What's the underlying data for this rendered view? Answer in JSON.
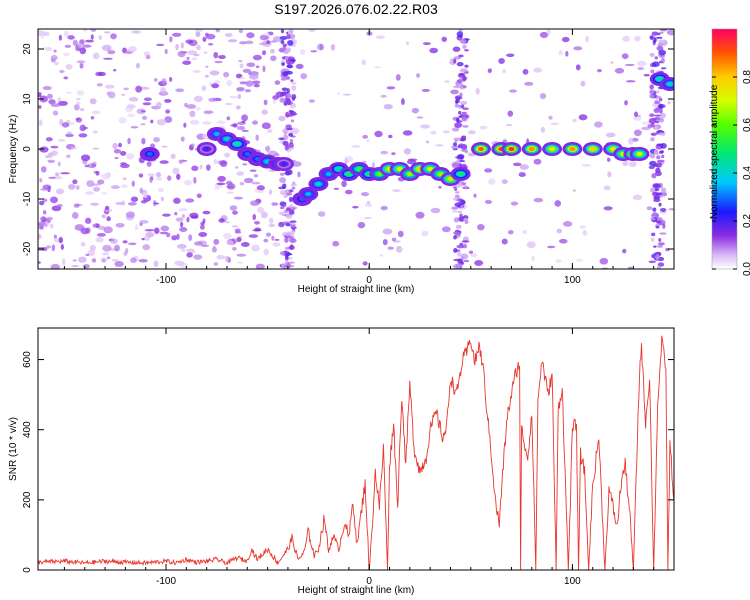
{
  "title": "S197.2026.076.02.22.R03",
  "chart_data": [
    {
      "type": "heatmap",
      "xlabel": "Height of straight line (km)",
      "ylabel": "Frequency (Hz)",
      "xlim": [
        -163,
        150
      ],
      "ylim": [
        -24,
        24
      ],
      "x_ticks": [
        "-100",
        "0",
        "100"
      ],
      "y_ticks": [
        "-20",
        "-10",
        "0",
        "10",
        "20"
      ],
      "colorbar": {
        "label": "Normalized spectral amplitude",
        "range": [
          0,
          1
        ],
        "ticks": [
          "0.0",
          "0.2",
          "0.4",
          "0.6",
          "0.8"
        ]
      },
      "ridge_x": [
        -108,
        -80,
        -75,
        -70,
        -65,
        -60,
        -55,
        -50,
        -45,
        -42,
        -33,
        -30,
        -25,
        -20,
        -15,
        -10,
        -5,
        0,
        5,
        10,
        15,
        20,
        25,
        30,
        35,
        40,
        45,
        55,
        65,
        70,
        80,
        90,
        100,
        110,
        120,
        125,
        130,
        133,
        143,
        148
      ],
      "ridge_freq": [
        -1,
        0,
        3,
        2,
        1,
        -1,
        -2,
        -2.5,
        -3,
        -3,
        -10,
        -9,
        -7,
        -5,
        -4,
        -5,
        -4,
        -5,
        -5,
        -4,
        -4,
        -5,
        -4,
        -4,
        -5,
        -6,
        -5,
        0,
        0,
        0,
        0,
        0,
        0,
        0,
        0,
        -1,
        -1,
        -1,
        14,
        13
      ],
      "ridge_amplitude": [
        0.3,
        0.2,
        0.35,
        0.4,
        0.45,
        0.3,
        0.3,
        0.4,
        0.35,
        0.2,
        0.3,
        0.35,
        0.4,
        0.35,
        0.45,
        0.5,
        0.55,
        0.5,
        0.6,
        0.75,
        0.7,
        0.65,
        0.8,
        0.7,
        0.65,
        0.75,
        0.5,
        0.9,
        0.95,
        0.95,
        0.85,
        0.75,
        0.85,
        0.8,
        0.75,
        0.7,
        0.8,
        0.7,
        0.45,
        0.4
      ]
    },
    {
      "type": "line",
      "xlabel": "Height of straight line (km)",
      "ylabel": "SNR (10 * v/v)",
      "xlim": [
        -163,
        150
      ],
      "ylim": [
        0,
        690
      ],
      "x_ticks": [
        "-100",
        "0",
        "100"
      ],
      "y_ticks": [
        "0",
        "200",
        "400",
        "600"
      ],
      "series_color": "#e8362d",
      "x": [
        -163,
        -150,
        -140,
        -130,
        -120,
        -110,
        -100,
        -95,
        -90,
        -85,
        -80,
        -75,
        -70,
        -65,
        -60,
        -58,
        -55,
        -50,
        -45,
        -40,
        -38,
        -35,
        -32,
        -30,
        -27,
        -25,
        -22,
        -20,
        -18,
        -15,
        -12,
        -10,
        -8,
        -6,
        -4,
        -2,
        0,
        1,
        3,
        5,
        7,
        9,
        10,
        12,
        14,
        16,
        18,
        20,
        22,
        25,
        28,
        30,
        33,
        36,
        38,
        40,
        43,
        46,
        48,
        50,
        52,
        54,
        56,
        58,
        60,
        62,
        64,
        66,
        68,
        70,
        72,
        74,
        74.5,
        75,
        78,
        80,
        82,
        83,
        85,
        88,
        90,
        92,
        93,
        95,
        98,
        100,
        102,
        103,
        104,
        106,
        108,
        110,
        113,
        116,
        118,
        120,
        122,
        124,
        126,
        128,
        130,
        133,
        134,
        136,
        138,
        140,
        142,
        144,
        146,
        147,
        148,
        150
      ],
      "y": [
        22,
        25,
        20,
        25,
        22,
        20,
        25,
        20,
        30,
        22,
        25,
        30,
        20,
        35,
        25,
        60,
        30,
        60,
        20,
        60,
        90,
        30,
        50,
        110,
        40,
        60,
        150,
        50,
        100,
        60,
        140,
        90,
        200,
        70,
        160,
        250,
        0,
        80,
        280,
        180,
        350,
        0,
        300,
        420,
        180,
        500,
        300,
        530,
        350,
        280,
        320,
        400,
        450,
        380,
        400,
        550,
        500,
        600,
        620,
        660,
        590,
        640,
        580,
        450,
        340,
        200,
        130,
        300,
        440,
        500,
        560,
        590,
        0,
        400,
        320,
        450,
        0,
        480,
        600,
        500,
        560,
        0,
        460,
        520,
        0,
        400,
        420,
        0,
        330,
        280,
        0,
        240,
        380,
        0,
        230,
        180,
        120,
        250,
        300,
        180,
        0,
        560,
        640,
        420,
        550,
        0,
        480,
        650,
        580,
        0,
        360,
        200
      ]
    }
  ]
}
